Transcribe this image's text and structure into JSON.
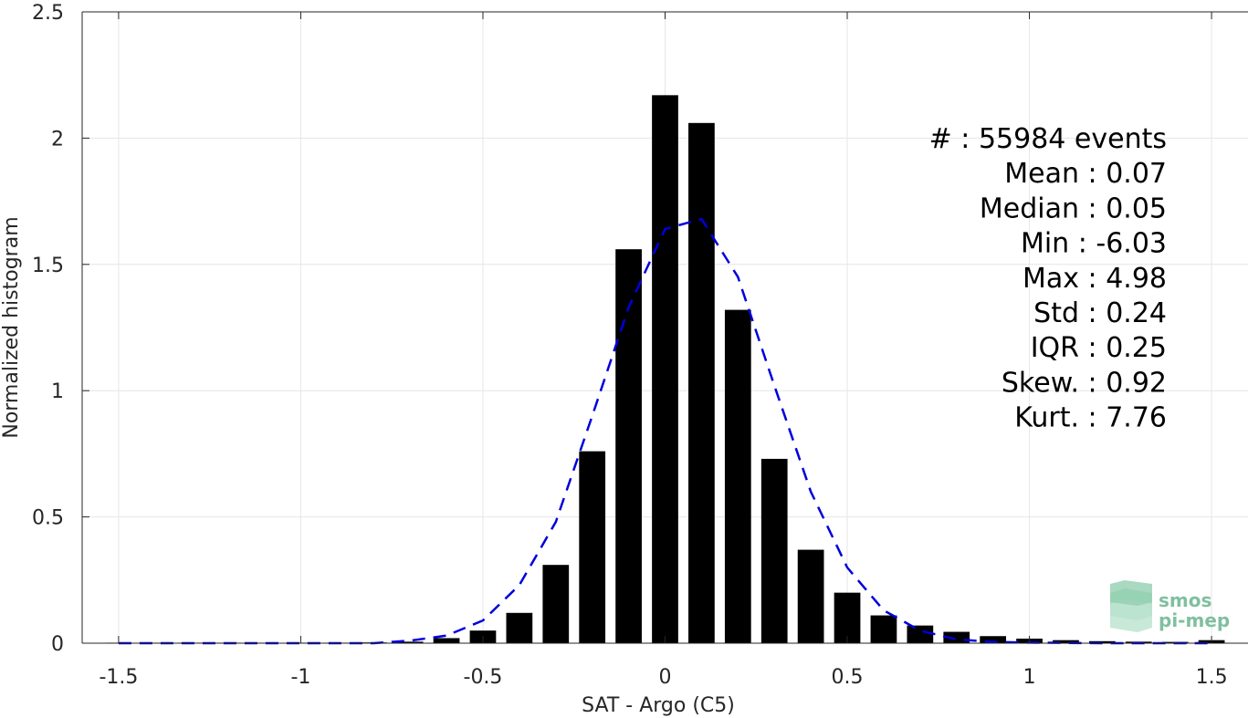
{
  "chart_data": {
    "type": "bar",
    "xlabel": "SAT - Argo (C5)",
    "ylabel": "Normalized histogram",
    "xlim": [
      -1.6,
      1.6
    ],
    "ylim": [
      0,
      2.5
    ],
    "xticks": [
      "-1.5",
      "-1",
      "-0.5",
      "0",
      "0.5",
      "1",
      "1.5"
    ],
    "xtick_values": [
      -1.5,
      -1,
      -0.5,
      0,
      0.5,
      1,
      1.5
    ],
    "yticks": [
      "0",
      "0.5",
      "1",
      "1.5",
      "2",
      "2.5"
    ],
    "ytick_values": [
      0,
      0.5,
      1,
      1.5,
      2,
      2.5
    ],
    "grid": true,
    "bar_color": "#000000",
    "series": [
      {
        "type": "bar",
        "x": [
          -1.5,
          -1.4,
          -1.3,
          -1.2,
          -1.1,
          -1.0,
          -0.9,
          -0.8,
          -0.7,
          -0.6,
          -0.5,
          -0.4,
          -0.3,
          -0.2,
          -0.1,
          0.0,
          0.1,
          0.2,
          0.3,
          0.4,
          0.5,
          0.6,
          0.7,
          0.8,
          0.9,
          1.0,
          1.1,
          1.2,
          1.3,
          1.4,
          1.5
        ],
        "values": [
          0.002,
          0.002,
          0.002,
          0.002,
          0.002,
          0.002,
          0.002,
          0.003,
          0.006,
          0.02,
          0.05,
          0.12,
          0.31,
          0.76,
          1.56,
          2.17,
          2.06,
          1.32,
          0.73,
          0.37,
          0.2,
          0.11,
          0.07,
          0.045,
          0.028,
          0.018,
          0.012,
          0.008,
          0.006,
          0.005,
          0.012
        ]
      },
      {
        "type": "line",
        "style": "dashed",
        "color": "#0000dd",
        "x": [
          -1.5,
          -1.4,
          -1.3,
          -1.2,
          -1.1,
          -1.0,
          -0.9,
          -0.8,
          -0.7,
          -0.6,
          -0.5,
          -0.4,
          -0.3,
          -0.2,
          -0.1,
          0.0,
          0.1,
          0.2,
          0.3,
          0.4,
          0.5,
          0.6,
          0.7,
          0.8,
          0.9,
          1.0,
          1.1,
          1.2,
          1.3,
          1.4,
          1.5
        ],
        "values": [
          0,
          0,
          0,
          0,
          0,
          0,
          0,
          0,
          0.01,
          0.03,
          0.09,
          0.23,
          0.48,
          0.9,
          1.33,
          1.64,
          1.68,
          1.45,
          1.02,
          0.6,
          0.3,
          0.13,
          0.05,
          0.015,
          0.005,
          0.002,
          0.001,
          0,
          0,
          0,
          0
        ]
      }
    ],
    "stats": [
      {
        "label": "#  : 55984 events"
      },
      {
        "label": "Mean : 0.07"
      },
      {
        "label": "Median : 0.05"
      },
      {
        "label": "Min : -6.03"
      },
      {
        "label": "Max : 4.98"
      },
      {
        "label": "Std : 0.24"
      },
      {
        "label": "IQR : 0.25"
      },
      {
        "label": "Skew. : 0.92"
      },
      {
        "label": "Kurt. : 7.76"
      }
    ],
    "logo": {
      "line1": "smos",
      "line2": "pi-mep",
      "color": "#7fbf9f"
    }
  }
}
